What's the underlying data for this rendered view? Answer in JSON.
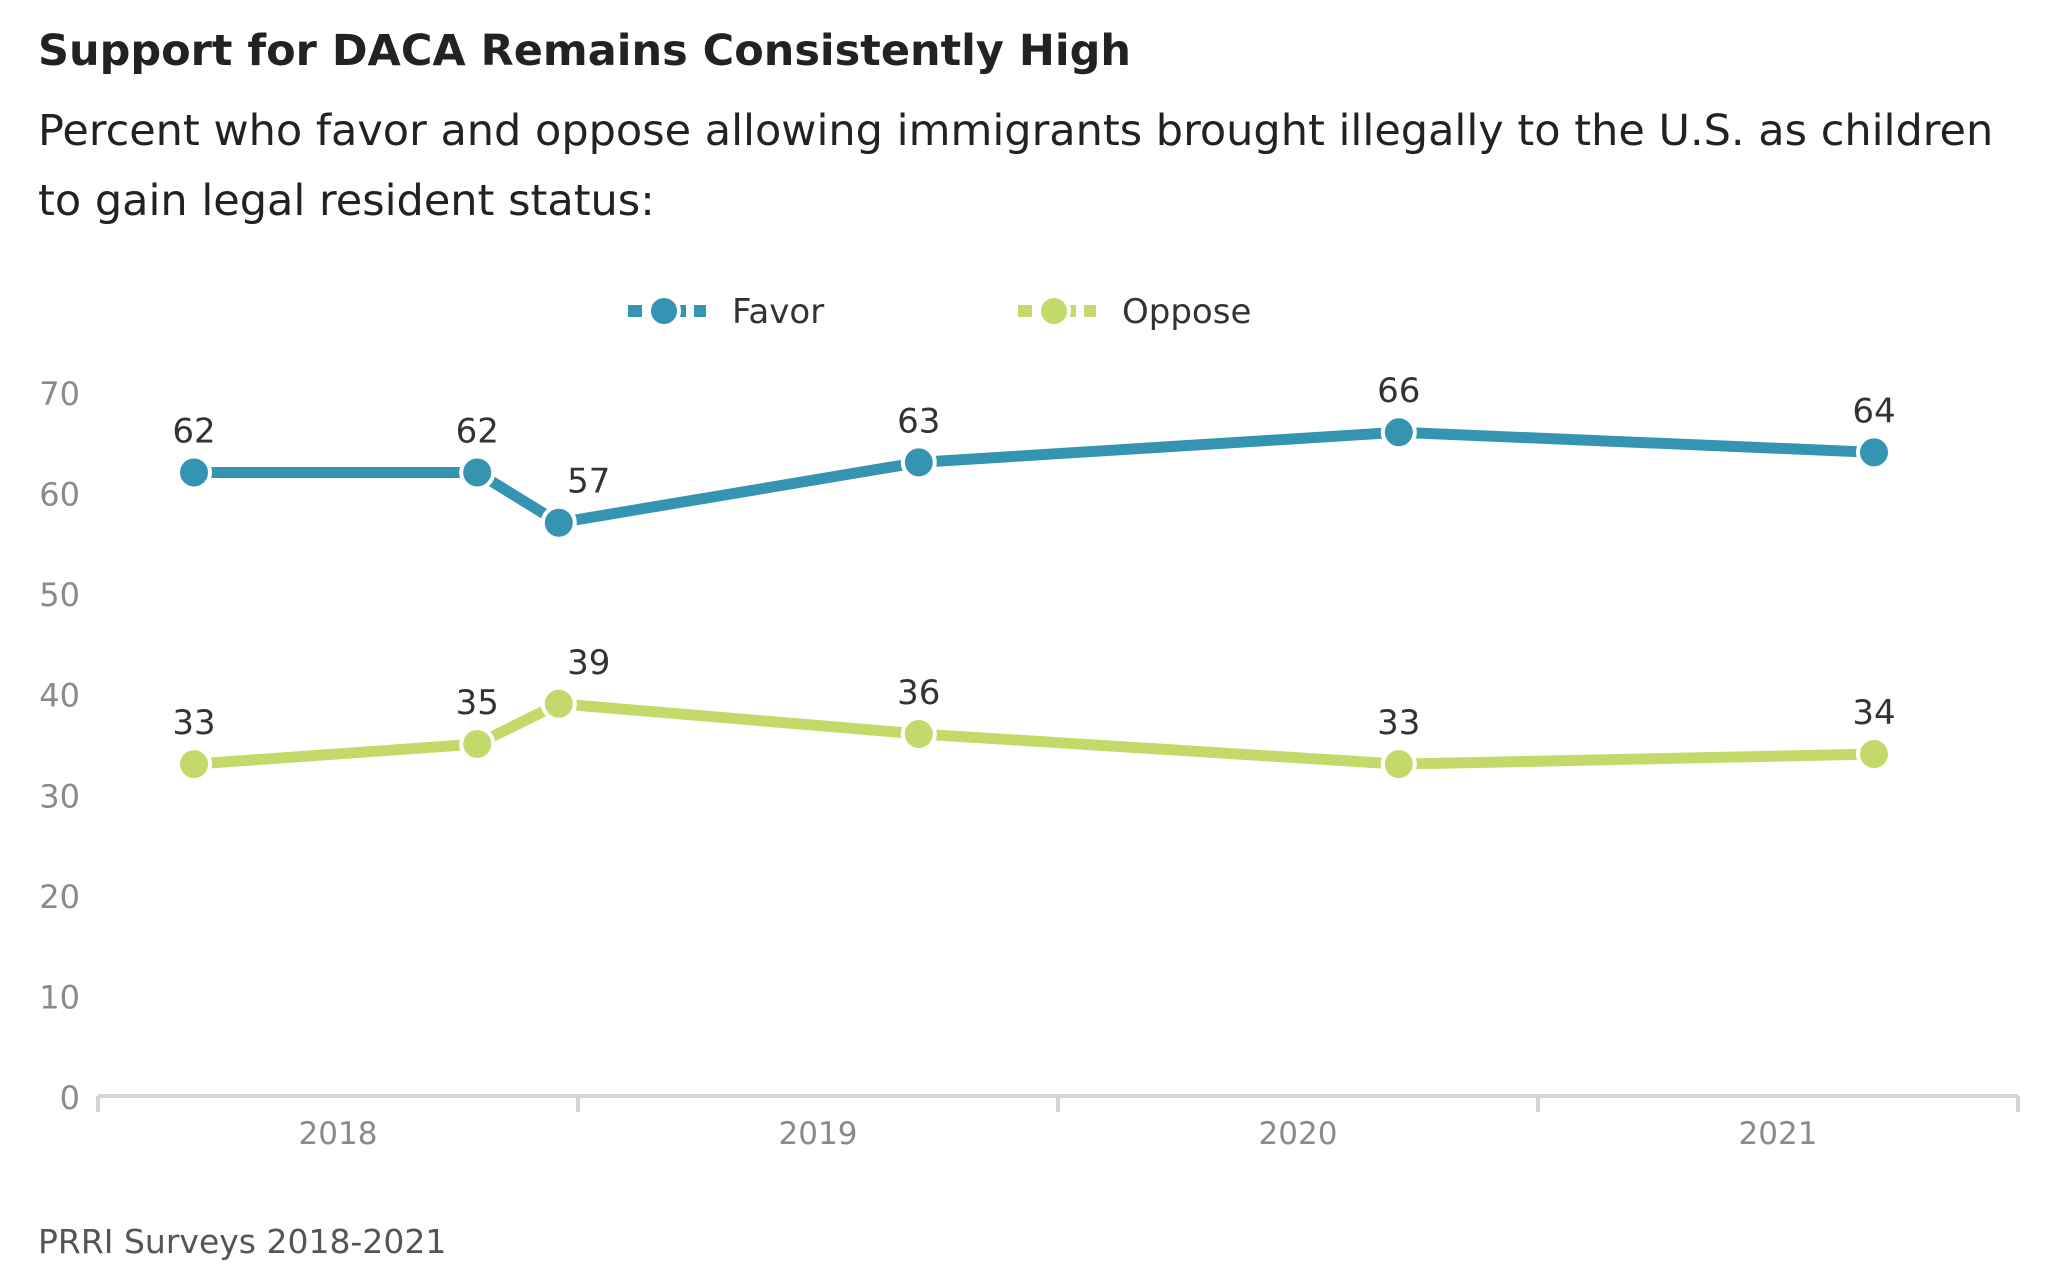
{
  "colors": {
    "favor": "#3494b2",
    "oppose": "#c3da6b",
    "axis": "#d4d4d4",
    "tick_text": "#8a8a8a",
    "label_text": "#333333"
  },
  "source": "PRRI Surveys 2018-2021",
  "chart_data": {
    "type": "line",
    "title": "Support for DACA Remains Consistently High",
    "subtitle": "Percent who favor and oppose allowing immigrants brought illegally to the U.S. as children to gain legal resident status:",
    "xlabel": "",
    "ylabel": "",
    "x": [
      2017.7,
      2018.29,
      2018.46,
      2019.21,
      2020.21,
      2021.2
    ],
    "xlim": [
      2017.5,
      2021.5
    ],
    "x_ticks": [
      2018,
      2019,
      2020,
      2021
    ],
    "x_tick_labels": [
      "2018",
      "2019",
      "2020",
      "2021"
    ],
    "ylim": [
      0,
      70
    ],
    "y_ticks": [
      0,
      10,
      20,
      30,
      40,
      50,
      60,
      70
    ],
    "y_tick_labels": [
      "0",
      "10",
      "20",
      "30",
      "40",
      "50",
      "60",
      "70"
    ],
    "legend_position": "top-center",
    "series": [
      {
        "name": "Favor",
        "key": "favor",
        "values": [
          62,
          62,
          57,
          63,
          66,
          64
        ],
        "labels": [
          "62",
          "62",
          "57",
          "63",
          "66",
          "64"
        ]
      },
      {
        "name": "Oppose",
        "key": "oppose",
        "values": [
          33,
          35,
          39,
          36,
          33,
          34
        ],
        "labels": [
          "33",
          "35",
          "39",
          "36",
          "33",
          "34"
        ]
      }
    ]
  }
}
